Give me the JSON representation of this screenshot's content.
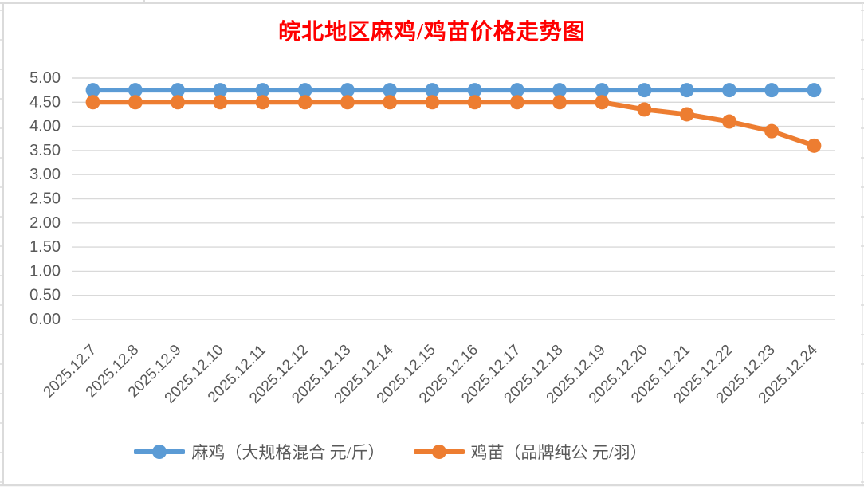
{
  "chart_data": {
    "type": "line",
    "title": "皖北地区麻鸡/鸡苗价格走势图",
    "title_color": "#FF0000",
    "categories": [
      "2025.12.7",
      "2025.12.8",
      "2025.12.9",
      "2025.12.10",
      "2025.12.11",
      "2025.12.12",
      "2025.12.13",
      "2025.12.14",
      "2025.12.15",
      "2025.12.16",
      "2025.12.17",
      "2025.12.18",
      "2025.12.19",
      "2025.12.20",
      "2025.12.21",
      "2025.12.22",
      "2025.12.23",
      "2025.12.24"
    ],
    "series": [
      {
        "name": "麻鸡（大规格混合 元/斤）",
        "color": "#5B9BD5",
        "values": [
          4.75,
          4.75,
          4.75,
          4.75,
          4.75,
          4.75,
          4.75,
          4.75,
          4.75,
          4.75,
          4.75,
          4.75,
          4.75,
          4.75,
          4.75,
          4.75,
          4.75,
          4.75
        ]
      },
      {
        "name": "鸡苗（品牌纯公 元/羽）",
        "color": "#ED7D31",
        "values": [
          4.5,
          4.5,
          4.5,
          4.5,
          4.5,
          4.5,
          4.5,
          4.5,
          4.5,
          4.5,
          4.5,
          4.5,
          4.5,
          4.35,
          4.25,
          4.1,
          3.9,
          3.6
        ]
      }
    ],
    "ylim": [
      0,
      5
    ],
    "ytick_step": 0.5,
    "yticks": [
      "5.00",
      "4.50",
      "4.00",
      "3.50",
      "3.00",
      "2.50",
      "2.00",
      "1.50",
      "1.00",
      "0.50",
      "0.00"
    ],
    "xlabel": "",
    "ylabel": "",
    "x_label_rotation": -45,
    "grid": "horizontal",
    "legend_position": "bottom"
  },
  "style": {
    "axis_text_color": "#595959",
    "gridline_color": "#D9D9D9",
    "spreadsheet_edge_color": "#DBDBDB",
    "marker_radius": 9,
    "line_width": 6
  }
}
